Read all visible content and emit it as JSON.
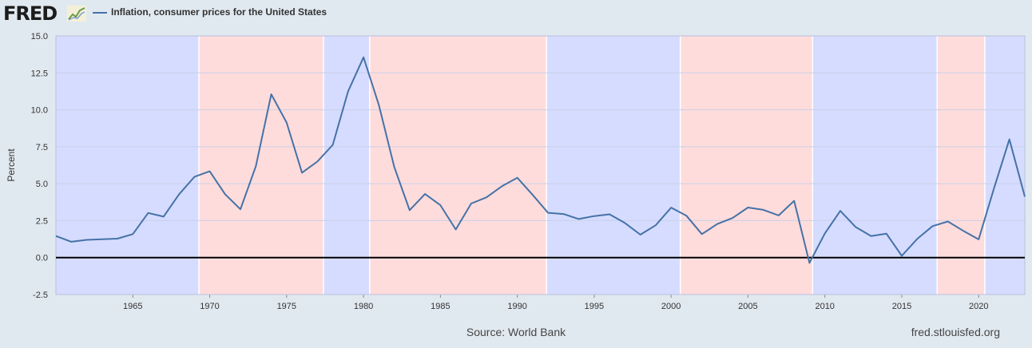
{
  "header": {
    "logo_text": "FRED",
    "legend_label": "Inflation, consumer prices for the United States"
  },
  "footer": {
    "source": "Source: World Bank",
    "url": "fred.stlouisfed.org"
  },
  "colors": {
    "line": "#4572a7",
    "blue_band": "#d6dcff",
    "red_band": "#ffdcdc",
    "zero_line": "#000000",
    "grid": "#c8d0e8"
  },
  "chart_data": {
    "type": "line",
    "ylabel": "Percent",
    "xlabel": "",
    "xlim": [
      1960,
      2023
    ],
    "ylim": [
      -2.5,
      15
    ],
    "yticks": [
      "15.0",
      "12.5",
      "10.0",
      "7.5",
      "5.0",
      "2.5",
      "0.0",
      "-2.5"
    ],
    "xticks": [
      "1965",
      "1970",
      "1975",
      "1980",
      "1985",
      "1990",
      "1995",
      "2000",
      "2005",
      "2010",
      "2015",
      "2020"
    ],
    "grid": true,
    "bands": [
      {
        "from": 1960,
        "to": 1969.3,
        "party": "blue"
      },
      {
        "from": 1969.3,
        "to": 1977.4,
        "party": "red"
      },
      {
        "from": 1977.4,
        "to": 1980.4,
        "party": "blue"
      },
      {
        "from": 1980.4,
        "to": 1991.9,
        "party": "red"
      },
      {
        "from": 1991.9,
        "to": 2000.6,
        "party": "blue"
      },
      {
        "from": 2000.6,
        "to": 2009.2,
        "party": "red"
      },
      {
        "from": 2009.2,
        "to": 2017.3,
        "party": "blue"
      },
      {
        "from": 2017.3,
        "to": 2020.4,
        "party": "red"
      },
      {
        "from": 2020.4,
        "to": 2023,
        "party": "blue"
      }
    ],
    "series": [
      {
        "name": "Inflation, consumer prices for the United States",
        "x": [
          1960,
          1961,
          1962,
          1963,
          1964,
          1965,
          1966,
          1967,
          1968,
          1969,
          1970,
          1971,
          1972,
          1973,
          1974,
          1975,
          1976,
          1977,
          1978,
          1979,
          1980,
          1981,
          1982,
          1983,
          1984,
          1985,
          1986,
          1987,
          1988,
          1989,
          1990,
          1991,
          1992,
          1993,
          1994,
          1995,
          1996,
          1997,
          1998,
          1999,
          2000,
          2001,
          2002,
          2003,
          2004,
          2005,
          2006,
          2007,
          2008,
          2009,
          2010,
          2011,
          2012,
          2013,
          2014,
          2015,
          2016,
          2017,
          2018,
          2019,
          2020,
          2021,
          2022,
          2023
        ],
        "values": [
          1.46,
          1.07,
          1.2,
          1.24,
          1.28,
          1.59,
          3.02,
          2.77,
          4.27,
          5.46,
          5.84,
          4.29,
          3.27,
          6.18,
          11.05,
          9.14,
          5.74,
          6.5,
          7.63,
          11.25,
          13.55,
          10.33,
          6.13,
          3.21,
          4.3,
          3.55,
          1.9,
          3.66,
          4.08,
          4.83,
          5.4,
          4.24,
          3.03,
          2.95,
          2.61,
          2.81,
          2.93,
          2.34,
          1.55,
          2.19,
          3.38,
          2.83,
          1.59,
          2.27,
          2.68,
          3.39,
          3.23,
          2.85,
          3.84,
          -0.36,
          1.64,
          3.16,
          2.07,
          1.46,
          1.62,
          0.12,
          1.26,
          2.13,
          2.44,
          1.81,
          1.23,
          4.7,
          8.0,
          4.12
        ]
      }
    ]
  }
}
